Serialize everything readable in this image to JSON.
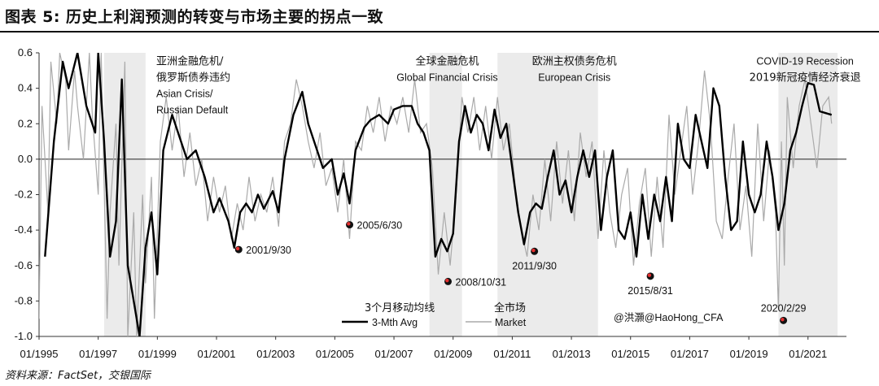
{
  "title": "图表 5: 历史上利润预测的转变与市场主要的拐点一致",
  "source": "资料来源：FactSet，交银国际",
  "chart_data": {
    "type": "line",
    "ylim": [
      -1.0,
      0.6
    ],
    "yticks": [
      "0.6",
      "0.4",
      "0.2",
      "0.0",
      "-0.2",
      "-0.4",
      "-0.6",
      "-0.8",
      "-1.0"
    ],
    "ytick_values": [
      0.6,
      0.4,
      0.2,
      0.0,
      -0.2,
      -0.4,
      -0.6,
      -0.8,
      -1.0
    ],
    "xlim": [
      1995.0,
      2022.3
    ],
    "xticks": [
      "01/1995",
      "01/1997",
      "01/1999",
      "01/2001",
      "01/2003",
      "01/2005",
      "01/2007",
      "01/2009",
      "01/2011",
      "01/2013",
      "01/2015",
      "01/2017",
      "01/2019",
      "01/2021"
    ],
    "xtick_values": [
      1995,
      1997,
      1999,
      2001,
      2003,
      2005,
      2007,
      2009,
      2011,
      2013,
      2015,
      2017,
      2019,
      2021
    ],
    "shaded_periods": [
      {
        "start": 1997.2,
        "end": 1998.6
      },
      {
        "start": 2008.2,
        "end": 2009.3
      },
      {
        "start": 2010.5,
        "end": 2013.9
      },
      {
        "start": 2020.0,
        "end": 2022.0
      }
    ],
    "period_labels": [
      {
        "lines": [
          "亚洲金融危机/",
          "俄罗斯债券违约",
          "Asian Crisis/",
          "Russian Default"
        ],
        "x": 1999.8,
        "y": 0.58,
        "anchor": "middle"
      },
      {
        "lines": [
          "全球金融危机",
          "Global Financial Crisis"
        ],
        "x": 2008.8,
        "y": 0.58,
        "anchor": "middle"
      },
      {
        "lines": [
          "欧洲主权债务危机",
          "European Crisis"
        ],
        "x": 2013.1,
        "y": 0.58,
        "anchor": "middle"
      },
      {
        "lines": [
          "COVID-19 Recession",
          "2019新冠疫情经济衰退"
        ],
        "x": 2020.9,
        "y": 0.58,
        "anchor": "middle"
      }
    ],
    "turning_points": [
      {
        "date": "2001/9/30",
        "x": 2001.75,
        "y": -0.51
      },
      {
        "date": "2005/6/30",
        "x": 2005.5,
        "y": -0.37
      },
      {
        "date": "2008/10/31",
        "x": 2008.83,
        "y": -0.69
      },
      {
        "date": "2011/9/30",
        "x": 2011.75,
        "y": -0.52
      },
      {
        "date": "2015/8/31",
        "x": 2015.67,
        "y": -0.66
      },
      {
        "date": "2020/2/29",
        "x": 2020.17,
        "y": -0.91
      }
    ],
    "handle": "@洪灝@HaoHong_CFA",
    "series": [
      {
        "name": "3-Mth Avg",
        "name_cn": "3个月移动均线",
        "color": "#000000",
        "x": [
          1995.2,
          1995.5,
          1995.8,
          1996.0,
          1996.3,
          1996.6,
          1996.9,
          1997.0,
          1997.2,
          1997.4,
          1997.6,
          1997.8,
          1998.0,
          1998.2,
          1998.4,
          1998.6,
          1998.8,
          1999.0,
          1999.2,
          1999.5,
          1999.8,
          2000.0,
          2000.3,
          2000.6,
          2000.9,
          2001.1,
          2001.4,
          2001.6,
          2001.8,
          2002.0,
          2002.2,
          2002.4,
          2002.6,
          2002.9,
          2003.1,
          2003.3,
          2003.6,
          2003.9,
          2004.1,
          2004.4,
          2004.6,
          2004.9,
          2005.1,
          2005.3,
          2005.5,
          2005.7,
          2006.0,
          2006.2,
          2006.5,
          2006.8,
          2007.0,
          2007.3,
          2007.6,
          2007.8,
          2008.0,
          2008.2,
          2008.4,
          2008.6,
          2008.8,
          2009.0,
          2009.2,
          2009.4,
          2009.6,
          2009.8,
          2010.0,
          2010.2,
          2010.4,
          2010.6,
          2010.8,
          2011.0,
          2011.2,
          2011.4,
          2011.6,
          2011.8,
          2012.0,
          2012.2,
          2012.4,
          2012.6,
          2012.8,
          2013.0,
          2013.2,
          2013.4,
          2013.6,
          2013.8,
          2014.0,
          2014.2,
          2014.4,
          2014.6,
          2014.8,
          2015.0,
          2015.2,
          2015.4,
          2015.6,
          2015.8,
          2016.0,
          2016.2,
          2016.4,
          2016.6,
          2016.8,
          2017.0,
          2017.2,
          2017.4,
          2017.6,
          2017.8,
          2018.0,
          2018.2,
          2018.4,
          2018.6,
          2018.8,
          2019.0,
          2019.2,
          2019.4,
          2019.6,
          2019.8,
          2020.0,
          2020.2,
          2020.4,
          2020.6,
          2020.8,
          2021.0,
          2021.2,
          2021.4,
          2021.6,
          2021.8
        ],
        "y": [
          -0.55,
          0.1,
          0.55,
          0.4,
          0.6,
          0.3,
          0.15,
          0.6,
          0.1,
          -0.55,
          -0.35,
          0.45,
          -0.6,
          -0.8,
          -1.0,
          -0.5,
          -0.3,
          -0.65,
          0.05,
          0.25,
          0.1,
          0.0,
          0.05,
          -0.1,
          -0.3,
          -0.22,
          -0.35,
          -0.5,
          -0.3,
          -0.25,
          -0.3,
          -0.2,
          -0.28,
          -0.18,
          -0.3,
          0.0,
          0.25,
          0.38,
          0.2,
          0.05,
          -0.05,
          0.0,
          -0.2,
          -0.08,
          -0.25,
          0.05,
          0.18,
          0.22,
          0.25,
          0.2,
          0.28,
          0.3,
          0.3,
          0.2,
          0.15,
          0.05,
          -0.55,
          -0.45,
          -0.52,
          -0.42,
          0.1,
          0.3,
          0.15,
          0.25,
          0.2,
          0.05,
          0.28,
          0.12,
          0.2,
          -0.05,
          -0.3,
          -0.48,
          -0.3,
          -0.25,
          -0.28,
          -0.1,
          0.05,
          -0.2,
          -0.12,
          -0.3,
          -0.1,
          0.05,
          -0.1,
          0.05,
          -0.4,
          -0.1,
          0.05,
          -0.4,
          -0.45,
          -0.3,
          -0.55,
          -0.2,
          -0.45,
          -0.2,
          -0.35,
          -0.1,
          -0.35,
          0.2,
          0.0,
          -0.05,
          0.25,
          0.1,
          -0.05,
          0.4,
          0.3,
          -0.1,
          -0.4,
          -0.35,
          0.1,
          -0.2,
          -0.3,
          -0.2,
          0.1,
          -0.1,
          -0.4,
          -0.25,
          0.05,
          0.15,
          0.3,
          0.43,
          0.42,
          0.27,
          0.26,
          0.25
        ]
      },
      {
        "name": "Market",
        "name_cn": "全市场",
        "color": "#aaaaaa",
        "x": [
          1995.0,
          1995.1,
          1995.3,
          1995.4,
          1995.6,
          1995.7,
          1995.9,
          1996.0,
          1996.2,
          1996.3,
          1996.5,
          1996.7,
          1996.8,
          1997.0,
          1997.1,
          1997.3,
          1997.4,
          1997.6,
          1997.7,
          1997.9,
          1998.0,
          1998.2,
          1998.3,
          1998.5,
          1998.6,
          1998.8,
          1998.9,
          1999.1,
          1999.3,
          1999.5,
          1999.7,
          1999.9,
          2000.1,
          2000.3,
          2000.5,
          2000.7,
          2000.9,
          2001.1,
          2001.3,
          2001.5,
          2001.7,
          2001.9,
          2002.1,
          2002.3,
          2002.5,
          2002.7,
          2002.9,
          2003.1,
          2003.3,
          2003.5,
          2003.7,
          2003.9,
          2004.1,
          2004.3,
          2004.5,
          2004.7,
          2004.9,
          2005.1,
          2005.3,
          2005.5,
          2005.7,
          2005.9,
          2006.1,
          2006.3,
          2006.5,
          2006.7,
          2006.9,
          2007.1,
          2007.3,
          2007.5,
          2007.7,
          2007.9,
          2008.1,
          2008.3,
          2008.5,
          2008.7,
          2008.9,
          2009.1,
          2009.3,
          2009.5,
          2009.7,
          2009.9,
          2010.1,
          2010.3,
          2010.5,
          2010.7,
          2010.9,
          2011.1,
          2011.3,
          2011.5,
          2011.7,
          2011.9,
          2012.1,
          2012.3,
          2012.5,
          2012.7,
          2012.9,
          2013.1,
          2013.3,
          2013.5,
          2013.7,
          2013.9,
          2014.1,
          2014.3,
          2014.5,
          2014.7,
          2014.9,
          2015.1,
          2015.3,
          2015.5,
          2015.7,
          2015.9,
          2016.1,
          2016.3,
          2016.5,
          2016.7,
          2016.9,
          2017.1,
          2017.3,
          2017.5,
          2017.7,
          2017.9,
          2018.1,
          2018.3,
          2018.5,
          2018.7,
          2018.9,
          2019.1,
          2019.3,
          2019.5,
          2019.7,
          2019.9,
          2020.0,
          2020.1,
          2020.2,
          2020.3,
          2020.5,
          2020.7,
          2020.9,
          2021.1,
          2021.3,
          2021.5,
          2021.7,
          2021.8
        ],
        "y": [
          -0.9,
          0.3,
          -0.3,
          0.55,
          0.2,
          0.6,
          0.45,
          0.05,
          0.5,
          0.3,
          0.0,
          0.6,
          0.25,
          -0.2,
          0.6,
          -0.9,
          -0.3,
          0.2,
          -0.6,
          0.55,
          -1.0,
          -0.3,
          -1.0,
          -0.2,
          -0.7,
          -0.1,
          -0.9,
          0.1,
          0.35,
          0.05,
          0.3,
          -0.1,
          0.15,
          -0.15,
          0.0,
          -0.35,
          -0.1,
          -0.3,
          -0.15,
          -0.45,
          -0.25,
          -0.4,
          -0.1,
          -0.35,
          -0.2,
          -0.3,
          -0.1,
          -0.38,
          0.1,
          0.2,
          0.45,
          0.3,
          0.1,
          -0.05,
          0.15,
          -0.15,
          -0.05,
          -0.3,
          0.0,
          -0.45,
          0.1,
          0.05,
          0.3,
          0.15,
          0.35,
          0.1,
          0.3,
          0.2,
          0.35,
          0.15,
          0.45,
          0.15,
          0.2,
          -0.05,
          -0.65,
          -0.3,
          -0.6,
          -0.2,
          0.35,
          0.15,
          0.35,
          0.05,
          0.3,
          0.0,
          0.35,
          0.05,
          0.2,
          -0.15,
          -0.4,
          -0.55,
          -0.2,
          -0.4,
          0.0,
          -0.35,
          0.1,
          -0.25,
          0.05,
          -0.35,
          0.15,
          -0.1,
          0.1,
          -0.45,
          0.05,
          -0.3,
          -0.5,
          -0.2,
          -0.05,
          -0.6,
          -0.25,
          -0.05,
          -0.55,
          -0.1,
          -0.5,
          0.25,
          -0.2,
          0.05,
          0.3,
          -0.2,
          0.1,
          0.5,
          0.2,
          -0.35,
          -0.45,
          -0.1,
          0.2,
          -0.4,
          -0.15,
          -0.55,
          0.2,
          -0.35,
          0.05,
          -0.3,
          -0.85,
          0.1,
          -0.6,
          0.35,
          -0.05,
          0.3,
          0.45,
          0.2,
          -0.05,
          0.3,
          0.35,
          0.2
        ]
      }
    ]
  }
}
